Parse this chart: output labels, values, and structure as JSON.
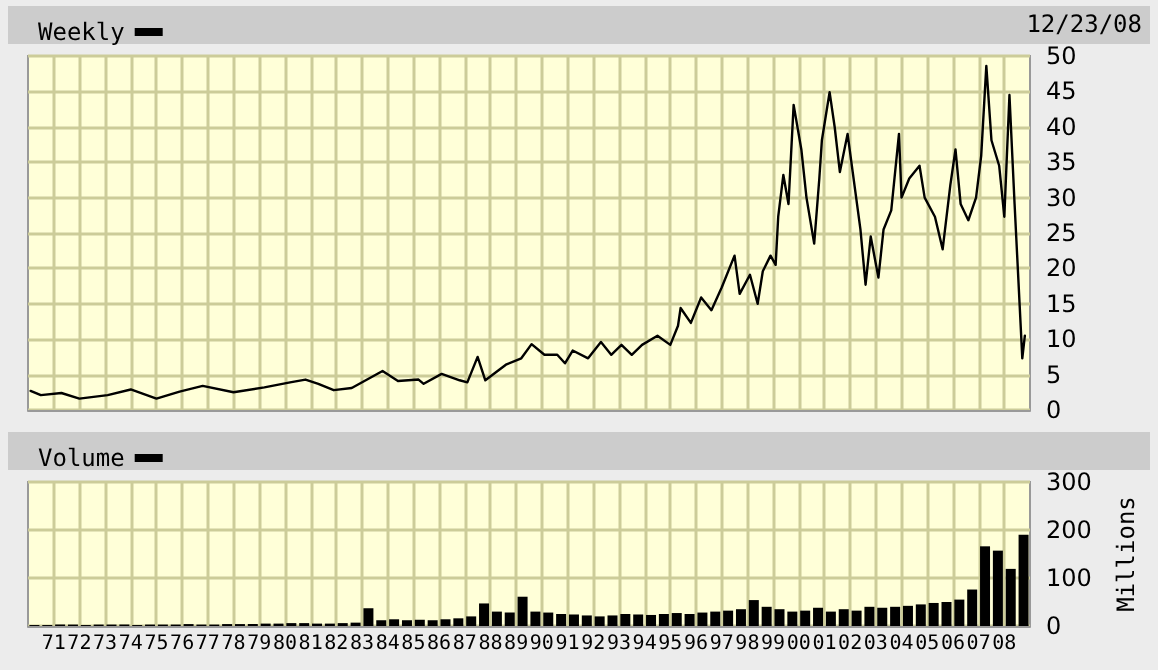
{
  "chart_data": [
    {
      "type": "line",
      "legend": "top left",
      "grid": true,
      "marker": "none",
      "line_style": "solid",
      "tick_labels": "y",
      "annotations": [
        "12/23/08"
      ],
      "xlim": [
        1970,
        2009
      ],
      "ylim": [
        0,
        50
      ],
      "yticks": [
        0,
        5,
        10,
        15,
        20,
        25,
        30,
        35,
        40,
        45,
        50
      ],
      "xticks": [
        {
          "value": 1971,
          "label": null
        },
        {
          "value": 1972,
          "label": null
        },
        {
          "value": 1973,
          "label": null
        },
        {
          "value": 1974,
          "label": null
        },
        {
          "value": 1975,
          "label": null
        },
        {
          "value": 1976,
          "label": null
        },
        {
          "value": 1977,
          "label": null
        },
        {
          "value": 1978,
          "label": null
        },
        {
          "value": 1979,
          "label": null
        },
        {
          "value": 1980,
          "label": null
        },
        {
          "value": 1981,
          "label": null
        },
        {
          "value": 1982,
          "label": null
        },
        {
          "value": 1983,
          "label": null
        },
        {
          "value": 1984,
          "label": null
        },
        {
          "value": 1985,
          "label": null
        },
        {
          "value": 1986,
          "label": null
        },
        {
          "value": 1987,
          "label": null
        },
        {
          "value": 1988,
          "label": null
        },
        {
          "value": 1989,
          "label": null
        },
        {
          "value": 1990,
          "label": null
        },
        {
          "value": 1991,
          "label": null
        },
        {
          "value": 1992,
          "label": null
        },
        {
          "value": 1993,
          "label": null
        },
        {
          "value": 1994,
          "label": null
        },
        {
          "value": 1995,
          "label": null
        },
        {
          "value": 1996,
          "label": null
        },
        {
          "value": 1997,
          "label": null
        },
        {
          "value": 1998,
          "label": null
        },
        {
          "value": 1999,
          "label": null
        },
        {
          "value": 2000,
          "label": null
        },
        {
          "value": 2001,
          "label": null
        },
        {
          "value": 2002,
          "label": null
        },
        {
          "value": 2003,
          "label": null
        },
        {
          "value": 2004,
          "label": null
        },
        {
          "value": 2005,
          "label": null
        },
        {
          "value": 2006,
          "label": null
        },
        {
          "value": 2007,
          "label": null
        },
        {
          "value": 2008,
          "label": null
        }
      ],
      "series": [
        {
          "name": "Weekly",
          "color": "#000000",
          "x": [
            1970.1,
            1970.5,
            1971.3,
            1972.0,
            1973.1,
            1974.0,
            1975.0,
            1975.9,
            1976.8,
            1978.0,
            1979.2,
            1980.2,
            1980.8,
            1981.3,
            1981.9,
            1982.6,
            1983.8,
            1984.4,
            1985.2,
            1985.4,
            1986.1,
            1986.8,
            1987.1,
            1987.5,
            1987.8,
            1988.6,
            1989.2,
            1989.6,
            1990.1,
            1990.6,
            1990.9,
            1991.2,
            1991.8,
            1992.3,
            1992.7,
            1993.1,
            1993.5,
            1993.9,
            1994.5,
            1995.0,
            1995.3,
            1995.4,
            1995.8,
            1996.2,
            1996.6,
            1997.0,
            1997.5,
            1997.7,
            1998.1,
            1998.4,
            1998.6,
            1998.9,
            1999.1,
            1999.2,
            1999.4,
            1999.6,
            1999.8,
            2000.1,
            2000.3,
            2000.6,
            2000.8,
            2000.9,
            2001.2,
            2001.4,
            2001.6,
            2001.9,
            2002.1,
            2002.4,
            2002.6,
            2002.8,
            2003.1,
            2003.3,
            2003.6,
            2003.9,
            2004.0,
            2004.3,
            2004.7,
            2004.9,
            2005.3,
            2005.6,
            2005.9,
            2006.1,
            2006.3,
            2006.6,
            2006.9,
            2007.1,
            2007.3,
            2007.5,
            2007.8,
            2008.0,
            2008.2,
            2008.4,
            2008.6,
            2008.7,
            2008.8
          ],
          "values": [
            2.7,
            2.1,
            2.4,
            1.6,
            2.1,
            2.9,
            1.6,
            2.6,
            3.4,
            2.5,
            3.2,
            3.9,
            4.3,
            3.7,
            2.8,
            3.1,
            5.5,
            4.1,
            4.3,
            3.7,
            5.1,
            4.2,
            3.9,
            7.5,
            4.2,
            6.4,
            7.3,
            9.3,
            7.8,
            7.8,
            6.6,
            8.4,
            7.3,
            9.6,
            7.8,
            9.2,
            7.8,
            9.2,
            10.5,
            9.2,
            11.9,
            14.4,
            12.3,
            15.9,
            14.1,
            17.3,
            21.8,
            16.4,
            19.1,
            15,
            19.6,
            21.8,
            20.5,
            27.3,
            33.2,
            29.1,
            43.1,
            36.8,
            30,
            23.5,
            32.7,
            38.1,
            44.9,
            39.9,
            33.6,
            39,
            33.6,
            25.5,
            17.7,
            24.5,
            18.7,
            25.5,
            28.2,
            39,
            30,
            32.7,
            34.5,
            30,
            27.3,
            22.7,
            31.8,
            36.8,
            29.1,
            26.8,
            30,
            35.9,
            48.6,
            38.1,
            34.5,
            27.3,
            44.5,
            29.1,
            14.6,
            7.3,
            10.5
          ]
        }
      ]
    },
    {
      "type": "bar",
      "legend": "top left",
      "grid": true,
      "ylabel": "Millions",
      "xlim": [
        1970,
        2009
      ],
      "ylim": [
        0,
        300
      ],
      "yticks": [
        0,
        100,
        200,
        300
      ],
      "xticks": [
        {
          "value": 1971,
          "label": "71"
        },
        {
          "value": 1972,
          "label": "72"
        },
        {
          "value": 1973,
          "label": "73"
        },
        {
          "value": 1974,
          "label": "74"
        },
        {
          "value": 1975,
          "label": "75"
        },
        {
          "value": 1976,
          "label": "76"
        },
        {
          "value": 1977,
          "label": "77"
        },
        {
          "value": 1978,
          "label": "78"
        },
        {
          "value": 1979,
          "label": "79"
        },
        {
          "value": 1980,
          "label": "80"
        },
        {
          "value": 1981,
          "label": "81"
        },
        {
          "value": 1982,
          "label": "82"
        },
        {
          "value": 1983,
          "label": "83"
        },
        {
          "value": 1984,
          "label": "84"
        },
        {
          "value": 1985,
          "label": "85"
        },
        {
          "value": 1986,
          "label": "86"
        },
        {
          "value": 1987,
          "label": "87"
        },
        {
          "value": 1988,
          "label": "88"
        },
        {
          "value": 1989,
          "label": "89"
        },
        {
          "value": 1990,
          "label": "90"
        },
        {
          "value": 1991,
          "label": "91"
        },
        {
          "value": 1992,
          "label": "92"
        },
        {
          "value": 1993,
          "label": "93"
        },
        {
          "value": 1994,
          "label": "94"
        },
        {
          "value": 1995,
          "label": "95"
        },
        {
          "value": 1996,
          "label": "96"
        },
        {
          "value": 1997,
          "label": "97"
        },
        {
          "value": 1998,
          "label": "98"
        },
        {
          "value": 1999,
          "label": "99"
        },
        {
          "value": 2000,
          "label": "00"
        },
        {
          "value": 2001,
          "label": "01"
        },
        {
          "value": 2002,
          "label": "02"
        },
        {
          "value": 2003,
          "label": "03"
        },
        {
          "value": 2004,
          "label": "04"
        },
        {
          "value": 2005,
          "label": "05"
        },
        {
          "value": 2006,
          "label": "06"
        },
        {
          "value": 2007,
          "label": "07"
        },
        {
          "value": 2008,
          "label": "08"
        }
      ],
      "series": [
        {
          "name": "Volume",
          "color": "#000000",
          "x": [
            1970.25,
            1970.75,
            1971.25,
            1971.75,
            1972.25,
            1972.75,
            1973.25,
            1973.75,
            1974.25,
            1974.75,
            1975.25,
            1975.75,
            1976.25,
            1976.75,
            1977.25,
            1977.75,
            1978.25,
            1978.75,
            1979.25,
            1979.75,
            1980.25,
            1980.75,
            1981.25,
            1981.75,
            1982.25,
            1982.75,
            1983.25,
            1983.75,
            1984.25,
            1984.75,
            1985.25,
            1985.75,
            1986.25,
            1986.75,
            1987.25,
            1987.75,
            1988.25,
            1988.75,
            1989.25,
            1989.75,
            1990.25,
            1990.75,
            1991.25,
            1991.75,
            1992.25,
            1992.75,
            1993.25,
            1993.75,
            1994.25,
            1994.75,
            1995.25,
            1995.75,
            1996.25,
            1996.75,
            1997.25,
            1997.75,
            1998.25,
            1998.75,
            1999.25,
            1999.75,
            2000.25,
            2000.75,
            2001.25,
            2001.75,
            2002.25,
            2002.75,
            2003.25,
            2003.75,
            2004.25,
            2004.75,
            2005.25,
            2005.75,
            2006.25,
            2006.75,
            2007.25,
            2007.75,
            2008.25,
            2008.75
          ],
          "values": [
            2,
            2,
            3,
            3,
            2,
            3,
            3,
            3,
            2,
            3,
            3,
            3,
            4,
            3,
            3,
            4,
            4,
            4,
            5,
            5,
            6,
            6,
            5,
            5,
            6,
            7,
            37,
            12,
            14,
            12,
            13,
            12,
            14,
            16,
            20,
            47,
            30,
            28,
            61,
            30,
            28,
            25,
            24,
            22,
            20,
            22,
            25,
            24,
            23,
            25,
            27,
            25,
            28,
            30,
            32,
            35,
            54,
            40,
            35,
            30,
            32,
            38,
            30,
            35,
            32,
            40,
            38,
            40,
            42,
            45,
            48,
            50,
            55,
            76,
            166,
            157,
            119,
            190
          ]
        }
      ]
    }
  ]
}
